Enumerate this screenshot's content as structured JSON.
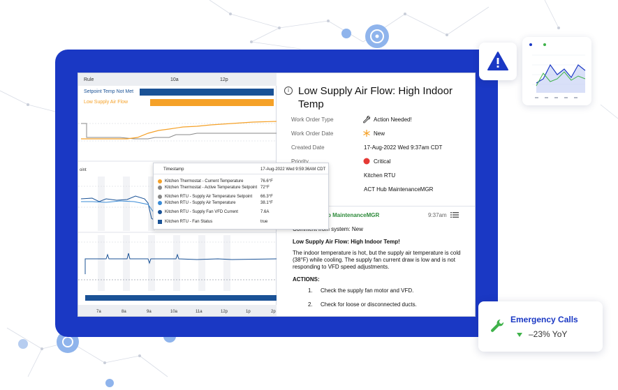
{
  "chart_panel": {
    "header": {
      "rule_label": "Rule",
      "ticks": [
        "10a",
        "12p"
      ]
    },
    "rules": [
      {
        "label": "Setpoint Temp Not Met",
        "color": "#1a5296"
      },
      {
        "label": "Low Supply Air Flow",
        "color": "#f5a128"
      }
    ],
    "partial_label": "oint",
    "bottom_ticks": [
      "7a",
      "8a",
      "9a",
      "10a",
      "11a",
      "12p",
      "1p",
      "2p"
    ],
    "tooltip": {
      "header_label": "Timestamp",
      "header_value": "17-Aug-2022 Wed 9:59:36AM CDT",
      "rows": [
        {
          "name": "Kitchen Thermostat - Current Temperature",
          "value": "76.6°F",
          "color": "#f5a128",
          "shape": "dot"
        },
        {
          "name": "Kitchen Thermostat - Active Temperature Setpoint",
          "value": "72°F",
          "color": "#888888",
          "shape": "dot"
        },
        {
          "name": "Kitchen RTU - Supply Air Temperature Setpoint",
          "value": "66.3°F",
          "color": "#888888",
          "shape": "dot"
        },
        {
          "name": "Kitchen RTU - Supply Air Temperature",
          "value": "38.1°F",
          "color": "#3a8bd6",
          "shape": "dot"
        },
        {
          "name": "Kitchen RTU - Supply Fan VFD Current",
          "value": "7.6A",
          "color": "#1a5296",
          "shape": "dot"
        },
        {
          "name": "Kitchen RTU - Fan Status",
          "value": "true",
          "color": "#1a5296",
          "shape": "square"
        }
      ]
    }
  },
  "work_order": {
    "title": "Low Supply Air Flow: High Indoor Temp",
    "fields": [
      {
        "key": "Work Order Type",
        "value": "Action Needed!",
        "icon": "wrench-icon"
      },
      {
        "key": "Work Order Date",
        "value": "New",
        "icon": "sparkle-icon"
      },
      {
        "key": "Created Date",
        "value": "17-Aug-2022 Wed 9:37am CDT"
      },
      {
        "key": "Priority",
        "value": "Critical",
        "icon": "critical-dot-icon"
      },
      {
        "key": "",
        "value": "Kitchen RTU"
      },
      {
        "key": "",
        "value": "ACT Hub MaintenanceMGR"
      }
    ],
    "comment": {
      "author": "b MaintenanceMGR",
      "time": "9:37am",
      "system_line": "Comment from system: New",
      "heading": "Low Supply Air Flow: High Indoor Temp!",
      "body": "The indoor temperature is hot, but the supply air temperature is cold (38°F) while cooling. The supply fan current draw is low and is not responding to VFD speed adjustments.",
      "actions_label": "ACTIONS:",
      "actions": [
        {
          "num": "1.",
          "text": "Check the supply fan motor and VFD."
        },
        {
          "num": "2.",
          "text": "Check for loose or disconnected ducts."
        }
      ]
    }
  },
  "emergency": {
    "title": "Emergency Calls",
    "change": "–23% YoY"
  },
  "colors": {
    "frame": "#1a38c4",
    "accent_orange": "#f5a128",
    "navy": "#1a5296",
    "critical": "#e53935",
    "green": "#3fb24a"
  }
}
